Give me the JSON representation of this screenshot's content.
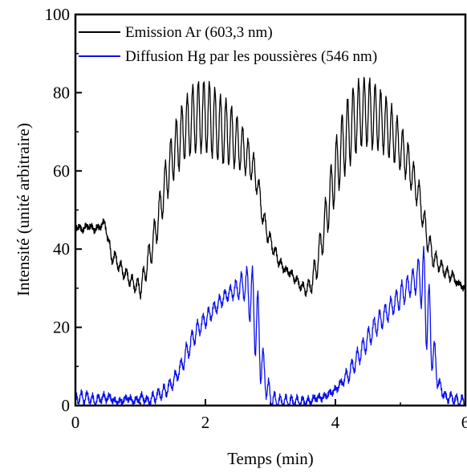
{
  "chart_data": {
    "type": "line",
    "title": "",
    "xlabel": "Temps (min)",
    "ylabel": "Intensité (unité arbitraire)",
    "xlim": [
      0,
      6
    ],
    "ylim": [
      0,
      100
    ],
    "x_ticks": [
      0,
      2,
      4,
      6
    ],
    "y_ticks": [
      0,
      20,
      40,
      60,
      80,
      100
    ],
    "grid": false,
    "legend_position": "top-left",
    "x": [
      0.0,
      0.1,
      0.2,
      0.3,
      0.4,
      0.45,
      0.5,
      0.55,
      0.6,
      0.7,
      0.8,
      0.9,
      1.0,
      1.05,
      1.1,
      1.2,
      1.3,
      1.4,
      1.5,
      1.6,
      1.7,
      1.8,
      1.9,
      2.0,
      2.1,
      2.2,
      2.3,
      2.4,
      2.5,
      2.6,
      2.7,
      2.75,
      2.8,
      2.85,
      2.9,
      3.0,
      3.1,
      3.2,
      3.3,
      3.4,
      3.5,
      3.6,
      3.7,
      3.8,
      3.9,
      4.0,
      4.1,
      4.2,
      4.3,
      4.4,
      4.5,
      4.6,
      4.7,
      4.8,
      4.9,
      5.0,
      5.1,
      5.2,
      5.3,
      5.35,
      5.4,
      5.45,
      5.5,
      5.6,
      5.7,
      5.8,
      5.9,
      6.0
    ],
    "series": [
      {
        "name": "Emission Ar (603,3 nm)",
        "color": "#000000",
        "amplitude": [
          0,
          0,
          0,
          0,
          0,
          0,
          1,
          1,
          1,
          1,
          1,
          1,
          2,
          2,
          3,
          4,
          5,
          6,
          7,
          8,
          8,
          9,
          9,
          9,
          9,
          8,
          8,
          7,
          6,
          5,
          4,
          4,
          3,
          3,
          3,
          2,
          2,
          1,
          1,
          1,
          1,
          2,
          3,
          4,
          6,
          7,
          8,
          9,
          9,
          9,
          9,
          9,
          8,
          8,
          7,
          6,
          5,
          4,
          3,
          3,
          3,
          2,
          2,
          1,
          1,
          1,
          0,
          0
        ],
        "values": [
          46,
          45,
          46,
          45,
          46,
          47,
          43,
          38,
          38,
          35,
          33,
          31,
          30,
          33,
          36,
          42,
          50,
          58,
          64,
          68,
          71,
          73,
          74,
          74,
          73,
          71,
          70,
          69,
          67,
          65,
          62,
          60,
          57,
          52,
          47,
          42,
          38,
          35,
          34,
          32,
          30,
          30,
          35,
          43,
          52,
          60,
          66,
          70,
          73,
          75,
          75,
          74,
          73,
          71,
          69,
          66,
          63,
          58,
          53,
          48,
          44,
          41,
          38,
          36,
          34,
          33,
          31,
          30
        ]
      },
      {
        "name": "Diffusion Hg par les poussières (546 nm)",
        "color": "#0a10ee",
        "amplitude": [
          1,
          1,
          1,
          1,
          1,
          1,
          1,
          1,
          1,
          1,
          1,
          1,
          1,
          1,
          1,
          1,
          1,
          1,
          1,
          1,
          2,
          2,
          2,
          2,
          2,
          2,
          2,
          2,
          3,
          4,
          8,
          10,
          10,
          8,
          4,
          2,
          1,
          1,
          1,
          1,
          1,
          1,
          1,
          1,
          1,
          1,
          1,
          2,
          2,
          2,
          2,
          2,
          2,
          2,
          2,
          3,
          3,
          3,
          6,
          10,
          12,
          10,
          6,
          2,
          1,
          1,
          1,
          1
        ],
        "values": [
          2,
          2,
          2,
          1,
          2,
          2,
          2,
          2,
          1,
          1,
          2,
          1,
          2,
          2,
          1,
          2,
          3,
          4,
          6,
          9,
          13,
          17,
          20,
          22,
          24,
          26,
          28,
          29,
          30,
          31,
          28,
          24,
          20,
          14,
          8,
          2,
          1,
          1,
          1,
          1,
          1,
          1,
          2,
          2,
          3,
          4,
          6,
          8,
          11,
          14,
          17,
          20,
          22,
          24,
          26,
          28,
          30,
          32,
          33,
          31,
          26,
          20,
          14,
          5,
          2,
          2,
          1,
          1
        ]
      }
    ]
  }
}
